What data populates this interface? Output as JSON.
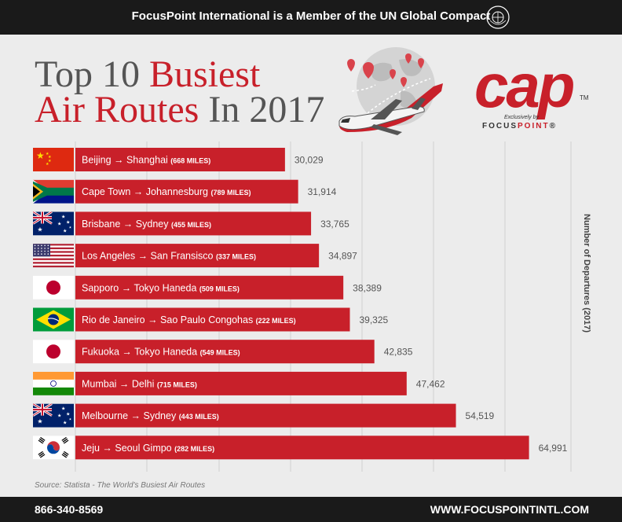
{
  "header": {
    "message": "FocusPoint International is a Member of the UN Global Compact",
    "un_emblem_icon": "un-global-compact-emblem"
  },
  "title": {
    "line1_gray": "Top 10 ",
    "line1_red": "Busiest",
    "line2_red": "Air Routes ",
    "line2_gray": "In 2017"
  },
  "logo": {
    "brand": "cap",
    "trademark": "TM",
    "tagline": "Exclusively by",
    "focus": "FOCUS",
    "point": "POINT",
    "registered": "®"
  },
  "colors": {
    "accent_red": "#c8202a",
    "dark": "#1a1a1a",
    "background": "#ececec",
    "text_gray": "#555555"
  },
  "chart_data": {
    "type": "bar",
    "orientation": "horizontal",
    "ylabel": "Number of Departures (2017)",
    "xlim": [
      0,
      71000
    ],
    "grid": true,
    "rows": [
      {
        "route": "Beijing → Shanghai",
        "distance": "(668 MILES)",
        "value": 30029,
        "value_label": "30,029",
        "flag": "china"
      },
      {
        "route": "Cape Town → Johannesburg",
        "distance": "(789 MILES)",
        "value": 31914,
        "value_label": "31,914",
        "flag": "south-africa"
      },
      {
        "route": "Brisbane → Sydney",
        "distance": "(455 MILES)",
        "value": 33765,
        "value_label": "33,765",
        "flag": "australia"
      },
      {
        "route": "Los Angeles → San Fransisco",
        "distance": "(337 MILES)",
        "value": 34897,
        "value_label": "34,897",
        "flag": "usa"
      },
      {
        "route": "Sapporo → Tokyo Haneda",
        "distance": "(509 MILES)",
        "value": 38389,
        "value_label": "38,389",
        "flag": "japan"
      },
      {
        "route": "Rio de Janeiro → Sao Paulo Congohas",
        "distance": "(222 MILES)",
        "value": 39325,
        "value_label": "39,325",
        "flag": "brazil"
      },
      {
        "route": "Fukuoka → Tokyo Haneda",
        "distance": "(549 MILES)",
        "value": 42835,
        "value_label": "42,835",
        "flag": "japan"
      },
      {
        "route": "Mumbai → Delhi",
        "distance": "(715 MILES)",
        "value": 47462,
        "value_label": "47,462",
        "flag": "india"
      },
      {
        "route": "Melbourne → Sydney",
        "distance": "(443 MILES)",
        "value": 54519,
        "value_label": "54,519",
        "flag": "australia"
      },
      {
        "route": "Jeju → Seoul Gimpo",
        "distance": "(282 MILES)",
        "value": 64991,
        "value_label": "64,991",
        "flag": "south-korea"
      }
    ]
  },
  "source": "Source: Statista - The World's Busiest Air Routes",
  "footer": {
    "phone": "866-340-8569",
    "website": "WWW.FOCUSPOINTINTL.COM"
  }
}
